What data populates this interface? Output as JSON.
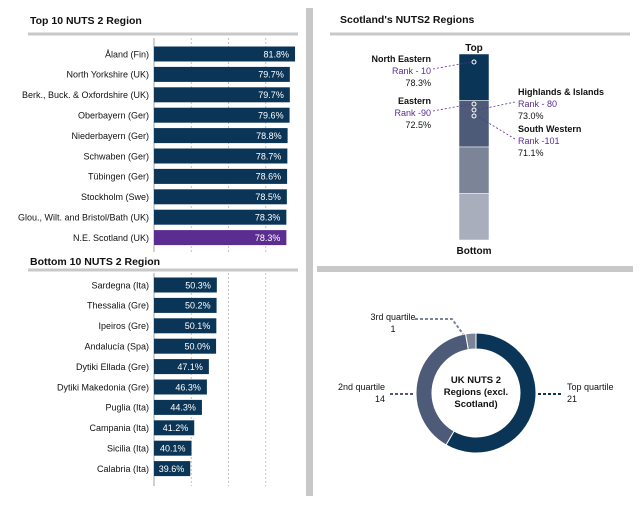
{
  "colors": {
    "bar": "#0b3557",
    "highlight": "#5c2d91",
    "divider": "#c8c8c8",
    "rank_text": "#5c2d91",
    "stack": [
      "#0b3557",
      "#4d5b78",
      "#7c8598",
      "#a9aebd"
    ],
    "donut": [
      "#0b3557",
      "#4d5b78",
      "#7c8598"
    ]
  },
  "chart_data": [
    {
      "type": "bar",
      "orientation": "horizontal",
      "title": "Top 10 NUTS 2 Region",
      "categories": [
        "Åland (Fin)",
        "North Yorkshire (UK)",
        "Berk., Buck. & Oxfordshire (UK)",
        "Oberbayern (Ger)",
        "Niederbayern (Ger)",
        "Schwaben (Ger)",
        "Tübingen (Ger)",
        "Stockholm (Swe)",
        "Glou., Wilt. and Bristol/Bath (UK)",
        "N.E. Scotland (UK)"
      ],
      "values": [
        81.8,
        79.7,
        79.7,
        79.6,
        78.8,
        78.7,
        78.6,
        78.5,
        78.3,
        78.3
      ],
      "value_labels": [
        "81.8%",
        "79.7%",
        "79.7%",
        "79.6%",
        "78.8%",
        "78.7%",
        "78.6%",
        "78.5%",
        "78.3%",
        "78.3%"
      ],
      "highlight_index": 9,
      "xlim": [
        25,
        85
      ],
      "grid": true
    },
    {
      "type": "bar",
      "orientation": "horizontal",
      "title": "Bottom 10 NUTS 2 Region",
      "categories": [
        "Sardegna (Ita)",
        "Thessalia (Gre)",
        "Ipeiros (Gre)",
        "Andalucía (Spa)",
        "Dytiki Ellada (Gre)",
        "Dytiki Makedonia (Gre)",
        "Puglia  (Ita)",
        "Campania  (Ita)",
        "Sicilia  (Ita)",
        "Calabria (Ita)"
      ],
      "values": [
        50.3,
        50.2,
        50.1,
        50.0,
        47.1,
        46.3,
        44.3,
        41.2,
        40.1,
        39.6
      ],
      "value_labels": [
        "50.3%",
        "50.2%",
        "50.1%",
        "50.0%",
        "47.1%",
        "46.3%",
        "44.3%",
        "41.2%",
        "40.1%",
        "39.6%"
      ],
      "xlim": [
        25,
        85
      ],
      "grid": true
    },
    {
      "type": "bar",
      "subtype": "stacked-quartile-column",
      "title": "Scotland's NUTS2 Regions",
      "top_label": "Top",
      "bottom_label": "Bottom",
      "segments": 4,
      "markers": [
        {
          "name": "North Eastern",
          "rank": "Rank - 10",
          "value": "78.3%",
          "segment": 0,
          "side": "left"
        },
        {
          "name": "Eastern",
          "rank": "Rank -90",
          "value": "72.5%",
          "segment": 1,
          "side": "left"
        },
        {
          "name": "Highlands & Islands",
          "rank": "Rank - 80",
          "value": "73.0%",
          "segment": 1,
          "side": "right"
        },
        {
          "name": "South Western",
          "rank": "Rank -101",
          "value": "71.1%",
          "segment": 1,
          "side": "right"
        }
      ]
    },
    {
      "type": "pie",
      "subtype": "donut",
      "center_label": [
        "UK NUTS 2",
        "Regions (excl.",
        "Scotland)"
      ],
      "slices": [
        {
          "name": "Top quartile",
          "value": 21
        },
        {
          "name": "2nd quartile",
          "value": 14
        },
        {
          "name": "3rd quartile",
          "value": 1
        }
      ]
    }
  ]
}
